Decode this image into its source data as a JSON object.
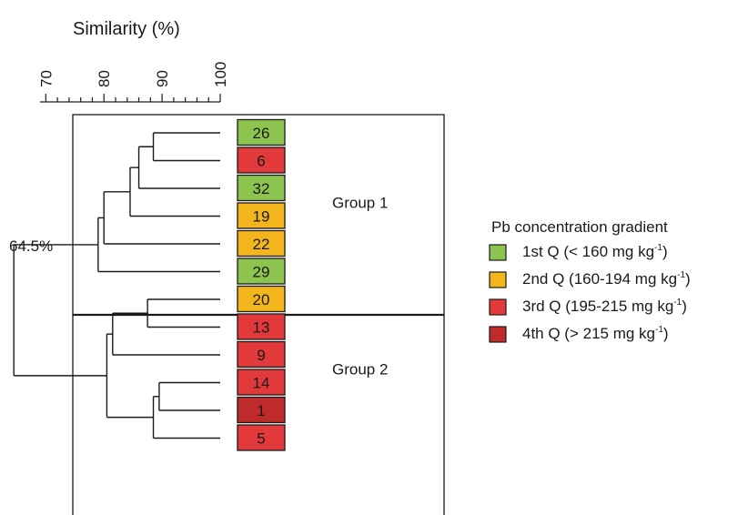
{
  "chart_data": {
    "type": "dendrogram",
    "axis": {
      "title": "Similarity (%)",
      "range": [
        64,
        100
      ],
      "major_ticks": [
        70,
        80,
        90,
        100
      ],
      "minor_step": 2,
      "tick_labels": [
        "70",
        "80",
        "90",
        "100"
      ]
    },
    "cut_label": "64.5%",
    "leaves": [
      {
        "id": "26",
        "quartile": 1
      },
      {
        "id": "6",
        "quartile": 3
      },
      {
        "id": "32",
        "quartile": 1
      },
      {
        "id": "19",
        "quartile": 2
      },
      {
        "id": "22",
        "quartile": 2
      },
      {
        "id": "29",
        "quartile": 1
      },
      {
        "id": "20",
        "quartile": 2
      },
      {
        "id": "13",
        "quartile": 3
      },
      {
        "id": "9",
        "quartile": 3
      },
      {
        "id": "14",
        "quartile": 3
      },
      {
        "id": "1",
        "quartile": 4
      },
      {
        "id": "5",
        "quartile": 3
      }
    ],
    "merges": [
      {
        "a": 0,
        "b": 1,
        "similarity": 88.5
      },
      {
        "a": 12,
        "b": 2,
        "similarity": 86.0
      },
      {
        "a": 13,
        "b": 3,
        "similarity": 84.5
      },
      {
        "a": 14,
        "b": 4,
        "similarity": 80.0
      },
      {
        "a": 15,
        "b": 5,
        "similarity": 79.0
      },
      {
        "a": 9,
        "b": 10,
        "similarity": 89.5
      },
      {
        "a": 17,
        "b": 11,
        "similarity": 88.5
      },
      {
        "a": 6,
        "b": 7,
        "similarity": 87.5
      },
      {
        "a": 19,
        "b": 8,
        "similarity": 81.5
      },
      {
        "a": 20,
        "b": 18,
        "similarity": 80.5
      },
      {
        "a": 16,
        "b": 21,
        "similarity": 64.5
      }
    ],
    "groups": [
      {
        "label": "Group 1",
        "leaves": [
          0,
          5
        ]
      },
      {
        "label": "Group 2",
        "leaves": [
          6,
          11
        ]
      }
    ],
    "legend": {
      "title": "Pb concentration gradient",
      "placement": "right",
      "items": [
        {
          "label": "1st Q (< 160 mg kg",
          "sup": "-1",
          "close": ")",
          "color": "#8dc34f"
        },
        {
          "label": "2nd Q (160-194 mg kg",
          "sup": "-1",
          "close": ")",
          "color": "#f2b51c"
        },
        {
          "label": "3rd Q (195-215 mg kg",
          "sup": "-1",
          "close": ")",
          "color": "#e23a3a"
        },
        {
          "label": "4th Q (> 215 mg kg",
          "sup": "-1",
          "close": ")",
          "color": "#bf2b2b"
        }
      ]
    }
  }
}
